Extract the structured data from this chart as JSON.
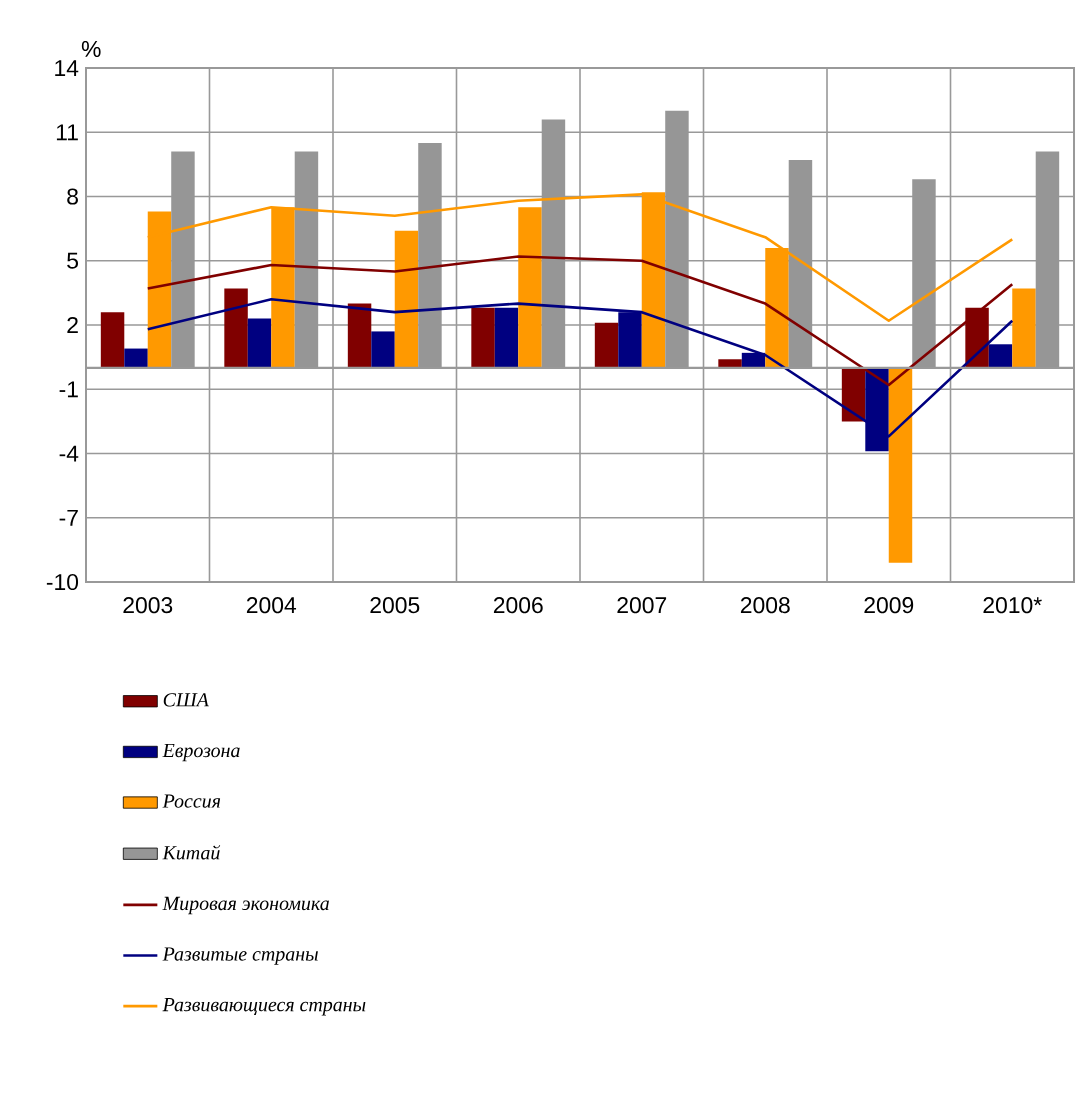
{
  "chart_data": {
    "type": "bar",
    "ylabel": "%",
    "categories": [
      "2003",
      "2004",
      "2005",
      "2006",
      "2007",
      "2008",
      "2009",
      "2010*"
    ],
    "ylim": [
      -10,
      14
    ],
    "yticks": [
      -10,
      -7,
      -4,
      -1,
      2,
      5,
      8,
      11,
      14
    ],
    "grid": true,
    "legend": "bottom",
    "series": [
      {
        "name": "США",
        "color": "#800000",
        "values": [
          2.6,
          3.7,
          3.0,
          2.8,
          2.1,
          0.4,
          -2.5,
          2.8
        ]
      },
      {
        "name": "Еврозона",
        "color": "#000080",
        "values": [
          0.9,
          2.3,
          1.7,
          2.8,
          2.6,
          0.7,
          -3.9,
          1.1
        ]
      },
      {
        "name": "Россия",
        "color": "#ff9900",
        "values": [
          7.3,
          7.5,
          6.4,
          7.5,
          8.2,
          5.6,
          -9.1,
          3.7
        ]
      },
      {
        "name": "Китай",
        "color": "#969696",
        "values": [
          10.1,
          10.1,
          10.5,
          11.6,
          12.0,
          9.7,
          8.8,
          10.1
        ]
      },
      {
        "name": "Мировая экономика",
        "type": "line",
        "color": "#800000",
        "values": [
          3.7,
          4.8,
          4.5,
          5.2,
          5.0,
          3.0,
          -0.8,
          3.9
        ]
      },
      {
        "name": "Развитые страны",
        "type": "line",
        "color": "#000080",
        "values": [
          1.8,
          3.2,
          2.6,
          3.0,
          2.6,
          0.6,
          -3.2,
          2.2
        ]
      },
      {
        "name": "Развивающиеся страны",
        "type": "line",
        "color": "#ff9900",
        "values": [
          6.1,
          7.5,
          7.1,
          7.8,
          8.1,
          6.1,
          2.2,
          6.0
        ]
      }
    ]
  }
}
